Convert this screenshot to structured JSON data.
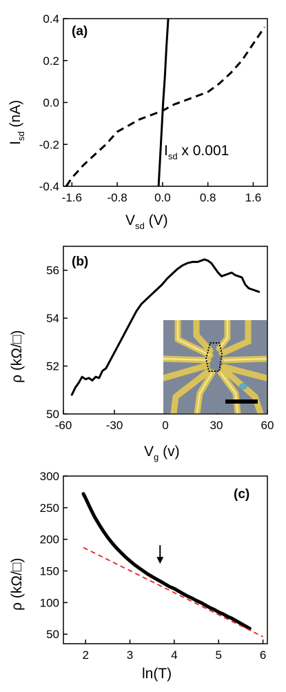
{
  "chart_data": [
    {
      "panel": "(a)",
      "type": "line",
      "xlabel_main": "V",
      "xlabel_sub": "sd",
      "xlabel_unit": " (V)",
      "ylabel_main": "I",
      "ylabel_sub": "sd",
      "ylabel_unit": " (nA)",
      "xlim": [
        -1.75,
        1.85
      ],
      "ylim": [
        -0.4,
        0.4
      ],
      "xticks": [
        -1.6,
        -0.8,
        0.0,
        0.8,
        1.6
      ],
      "xtick_labels": [
        "-1.6",
        "-0.8",
        "0.0",
        "0.8",
        "1.6"
      ],
      "yticks": [
        -0.4,
        -0.2,
        0.0,
        0.2,
        0.4
      ],
      "ytick_labels": [
        "-0.4",
        "-0.2",
        "0.0",
        "0.2",
        "0.4"
      ],
      "annotation_main": "I",
      "annotation_sub": "sd",
      "annotation_rest": " x 0.001",
      "series": [
        {
          "style": "solid",
          "x": [
            -0.07,
            -0.04,
            -0.01,
            0.01,
            0.04,
            0.07,
            0.1
          ],
          "y": [
            -0.4,
            -0.25,
            -0.1,
            0.0,
            0.12,
            0.27,
            0.4
          ]
        },
        {
          "style": "dashed",
          "x": [
            -1.7,
            -1.6,
            -1.4,
            -1.2,
            -1.0,
            -0.8,
            -0.6,
            -0.4,
            -0.2,
            0.0,
            0.2,
            0.4,
            0.6,
            0.8,
            1.0,
            1.2,
            1.4,
            1.6,
            1.8
          ],
          "y": [
            -0.4,
            -0.36,
            -0.3,
            -0.25,
            -0.2,
            -0.14,
            -0.11,
            -0.08,
            -0.06,
            -0.04,
            -0.01,
            0.01,
            0.03,
            0.05,
            0.09,
            0.14,
            0.2,
            0.28,
            0.36
          ]
        }
      ]
    },
    {
      "panel": "(b)",
      "type": "line",
      "xlabel_main": "V",
      "xlabel_sub": "g",
      "xlabel_unit": " (v)",
      "ylabel": "ρ (kΩ/□)",
      "xlim": [
        -60,
        60
      ],
      "ylim": [
        50,
        57
      ],
      "xticks": [
        -60,
        -30,
        0,
        30,
        60
      ],
      "xtick_labels": [
        "-60",
        "-30",
        "0",
        "30",
        "60"
      ],
      "yticks": [
        50,
        52,
        54,
        56
      ],
      "ytick_labels": [
        "50",
        "52",
        "54",
        "56"
      ],
      "inset": "optical micrograph of the device with electrodes; dotted outline marks the sample, black scale bar",
      "series": [
        {
          "style": "solid",
          "x": [
            -55,
            -53,
            -51,
            -49,
            -47,
            -45,
            -43,
            -41,
            -39,
            -37,
            -35,
            -32,
            -29,
            -26,
            -23,
            -20,
            -17,
            -14,
            -11,
            -8,
            -5,
            -2,
            1,
            4,
            7,
            10,
            13,
            16,
            19,
            21,
            23,
            25,
            27,
            29,
            31,
            33,
            35,
            37,
            39,
            41,
            43,
            45,
            47,
            49,
            51,
            53,
            55
          ],
          "y": [
            50.8,
            51.1,
            51.3,
            51.55,
            51.45,
            51.5,
            51.4,
            51.55,
            51.5,
            51.8,
            51.9,
            52.3,
            52.7,
            53.1,
            53.5,
            53.9,
            54.3,
            54.6,
            54.8,
            55.0,
            55.2,
            55.4,
            55.65,
            55.85,
            56.05,
            56.2,
            56.3,
            56.35,
            56.35,
            56.4,
            56.45,
            56.4,
            56.3,
            56.1,
            55.9,
            55.75,
            55.8,
            55.85,
            55.9,
            55.8,
            55.75,
            55.7,
            55.4,
            55.25,
            55.2,
            55.15,
            55.1
          ]
        }
      ]
    },
    {
      "panel": "(c)",
      "type": "line",
      "xlabel": "ln(T)",
      "ylabel": "ρ (kΩ/□)",
      "xlim": [
        1.5,
        6.1
      ],
      "ylim": [
        35,
        300
      ],
      "xticks": [
        2,
        3,
        4,
        5,
        6
      ],
      "xtick_labels": [
        "2",
        "3",
        "4",
        "5",
        "6"
      ],
      "yticks": [
        50,
        100,
        150,
        200,
        250,
        300
      ],
      "ytick_labels": [
        "50",
        "100",
        "150",
        "200",
        "250",
        "300"
      ],
      "arrow_x": 3.68,
      "series": [
        {
          "style": "solid-thick",
          "color": "#000000",
          "x": [
            1.95,
            2.0,
            2.1,
            2.2,
            2.3,
            2.4,
            2.5,
            2.6,
            2.7,
            2.8,
            2.9,
            3.0,
            3.1,
            3.2,
            3.3,
            3.4,
            3.5,
            3.6,
            3.7,
            3.8,
            3.9,
            4.0,
            4.1,
            4.2,
            4.3,
            4.4,
            4.5,
            4.6,
            4.7,
            4.8,
            4.9,
            5.0,
            5.1,
            5.2,
            5.3,
            5.4,
            5.5,
            5.6,
            5.7
          ],
          "y": [
            272,
            265,
            250,
            236,
            224,
            213,
            203,
            194,
            186,
            179,
            172,
            166,
            160,
            155,
            150,
            145,
            141,
            137,
            133,
            129,
            125,
            122,
            118,
            114,
            110,
            107,
            103,
            100,
            96,
            92,
            89,
            85,
            82,
            78,
            75,
            71,
            67,
            63,
            59
          ]
        },
        {
          "style": "dashed",
          "color": "#e8221c",
          "x": [
            1.95,
            6.0
          ],
          "y": [
            187,
            46
          ]
        }
      ]
    }
  ]
}
